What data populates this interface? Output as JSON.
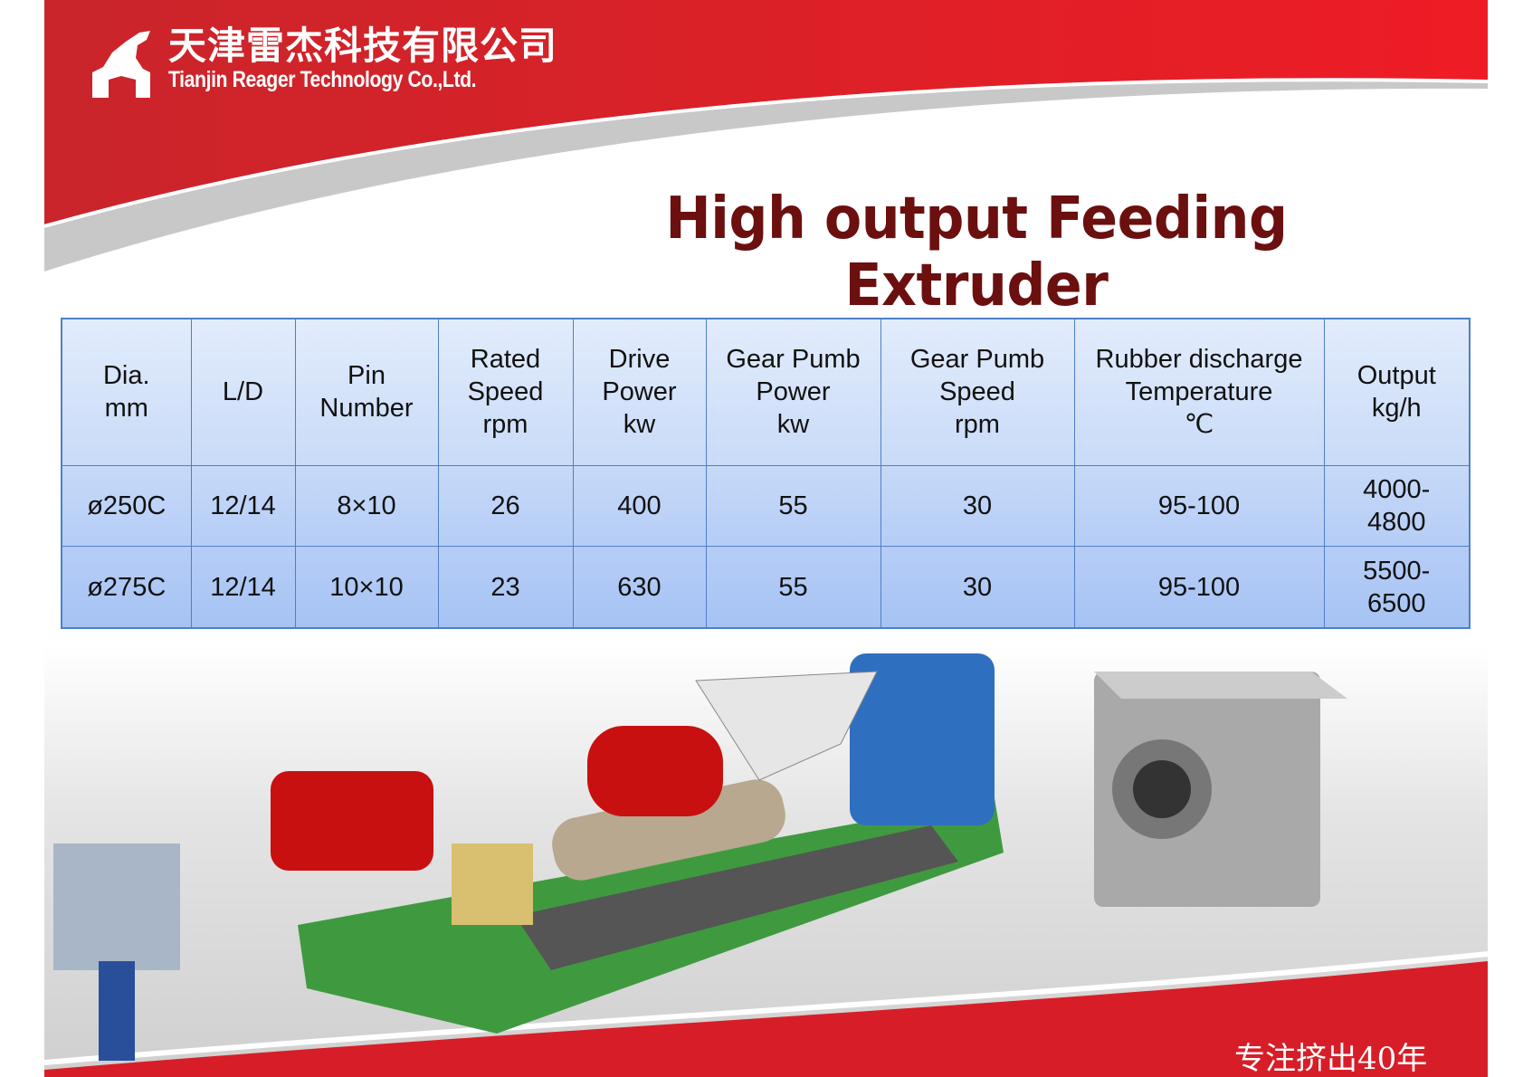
{
  "company": {
    "name_cn": "天津雷杰科技有限公司",
    "name_en": "Tianjin Reager Technology Co.,Ltd."
  },
  "title": "High output Feeding Extruder",
  "table": {
    "headers": [
      "Dia.\nmm",
      "L/D",
      "Pin\nNumber",
      "Rated\nSpeed\nrpm",
      "Drive\nPower\nkw",
      "Gear Pumb\nPower\nkw",
      "Gear Pumb\nSpeed\nrpm",
      "Rubber discharge\nTemperature\n℃",
      "Output\nkg/h"
    ],
    "rows": [
      [
        "ø250C",
        "12/14",
        "8×10",
        "26",
        "400",
        "55",
        "30",
        "95-100",
        "4000-\n4800"
      ],
      [
        "ø275C",
        "12/14",
        "10×10",
        "23",
        "630",
        "55",
        "30",
        "95-100",
        "5500-\n6500"
      ]
    ]
  },
  "footer": "专注挤出40年",
  "colors": {
    "brand_red": "#d71e28",
    "title": "#6b0f0f",
    "table_border": "#4f7fc7"
  }
}
